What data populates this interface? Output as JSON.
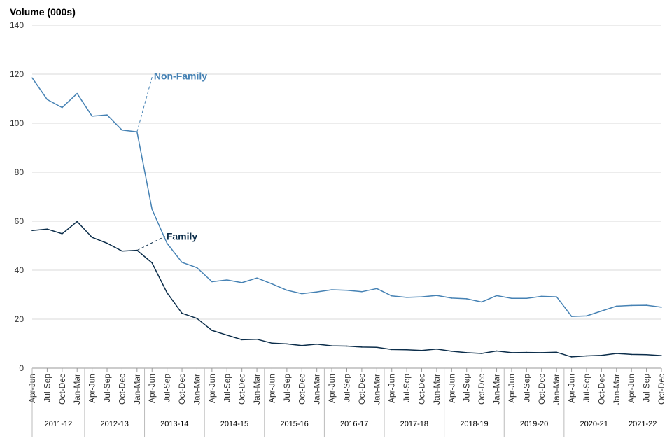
{
  "chart_data": {
    "type": "line",
    "ylabel": "Volume (000s)",
    "xlabel": "",
    "ylim": [
      0,
      140
    ],
    "yticks": [
      0,
      20,
      40,
      60,
      80,
      100,
      120,
      140
    ],
    "grid": true,
    "categories": [
      "Apr-Jun",
      "Jul-Sep",
      "Oct-Dec",
      "Jan-Mar",
      "Apr-Jun",
      "Jul-Sep",
      "Oct-Dec",
      "Jan-Mar",
      "Apr-Jun",
      "Jul-Sep",
      "Oct-Dec",
      "Jan-Mar",
      "Apr-Jun",
      "Jul-Sep",
      "Oct-Dec",
      "Jan-Mar",
      "Apr-Jun",
      "Jul-Sep",
      "Oct-Dec",
      "Jan-Mar",
      "Apr-Jun",
      "Jul-Sep",
      "Oct-Dec",
      "Jan-Mar",
      "Apr-Jun",
      "Jul-Sep",
      "Oct-Dec",
      "Jan-Mar",
      "Apr-Jun",
      "Jul-Sep",
      "Oct-Dec",
      "Jan-Mar",
      "Apr-Jun",
      "Jul-Sep",
      "Oct-Dec",
      "Jan-Mar",
      "Apr-Jun",
      "Jul-Sep",
      "Oct-Dec",
      "Jan-Mar",
      "Apr-Jun",
      "Jul-Sep",
      "Oct-Dec"
    ],
    "year_groups": [
      {
        "label": "2011-12",
        "count": 4
      },
      {
        "label": "2012-13",
        "count": 4
      },
      {
        "label": "2013-14",
        "count": 4
      },
      {
        "label": "2014-15",
        "count": 4
      },
      {
        "label": "2015-16",
        "count": 4
      },
      {
        "label": "2016-17",
        "count": 4
      },
      {
        "label": "2017-18",
        "count": 4
      },
      {
        "label": "2018-19",
        "count": 4
      },
      {
        "label": "2019-20",
        "count": 4
      },
      {
        "label": "2020-21",
        "count": 4
      },
      {
        "label": "2021-22",
        "count": 3
      }
    ],
    "series": [
      {
        "name": "Non-Family",
        "color": "#4682b4",
        "values": [
          118.5,
          109.7,
          106.4,
          112.1,
          102.9,
          103.4,
          97.2,
          96.5,
          64.9,
          51.0,
          43.2,
          41.0,
          35.3,
          36.0,
          34.9,
          36.8,
          34.4,
          31.8,
          30.4,
          31.1,
          32.0,
          31.8,
          31.2,
          32.5,
          29.5,
          28.9,
          29.1,
          29.7,
          28.6,
          28.3,
          27.0,
          29.6,
          28.5,
          28.5,
          29.3,
          29.1,
          21.1,
          21.3,
          23.3,
          25.3,
          25.6,
          25.7,
          24.9
        ],
        "label_anchor_index": 7,
        "label_offset": [
          22,
          80
        ]
      },
      {
        "name": "Family",
        "color": "#0b2d4a",
        "values": [
          56.2,
          56.8,
          54.9,
          59.9,
          53.4,
          51.0,
          47.8,
          48.1,
          43.0,
          30.8,
          22.4,
          20.3,
          15.4,
          13.5,
          11.6,
          11.8,
          10.2,
          9.9,
          9.2,
          9.8,
          9.1,
          9.0,
          8.6,
          8.5,
          7.6,
          7.5,
          7.2,
          7.8,
          6.9,
          6.3,
          6.0,
          7.0,
          6.3,
          6.4,
          6.3,
          6.5,
          4.6,
          5.0,
          5.2,
          6.0,
          5.6,
          5.5,
          5.1
        ],
        "label_anchor_index": 7,
        "label_offset": [
          40,
          20
        ]
      }
    ]
  }
}
